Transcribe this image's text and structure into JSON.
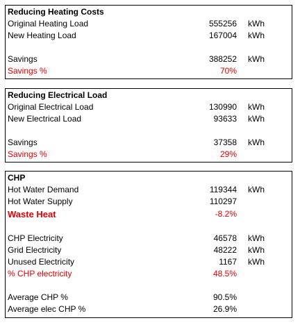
{
  "colors": {
    "accent_red": "#e00000"
  },
  "heating": {
    "title": "Reducing Heating Costs",
    "rows": [
      {
        "label": "Original Heating Load",
        "value": "555256",
        "unit": "kWh"
      },
      {
        "label": "New Heating Load",
        "value": "167004",
        "unit": "kWh"
      },
      {
        "label": "Savings",
        "value": "388252",
        "unit": "kWh"
      },
      {
        "label": "Savings %",
        "value": "70%",
        "unit": ""
      }
    ]
  },
  "electrical": {
    "title": "Reducing Electrical Load",
    "rows": [
      {
        "label": "Original Electrical Load",
        "value": "130990",
        "unit": "kWh"
      },
      {
        "label": "New Electrical Load",
        "value": "93633",
        "unit": "kWh"
      },
      {
        "label": "Savings",
        "value": "37358",
        "unit": "kWh"
      },
      {
        "label": "Savings %",
        "value": "29%",
        "unit": ""
      }
    ]
  },
  "chp": {
    "title": "CHP",
    "rows": [
      {
        "label": "Hot Water Demand",
        "value": "119344",
        "unit": "kWh"
      },
      {
        "label": "Hot Water Supply",
        "value": "110297",
        "unit": ""
      },
      {
        "label": "Waste Heat",
        "value": "-8.2%",
        "unit": ""
      },
      {
        "label": "CHP Electricity",
        "value": "46578",
        "unit": "kWh"
      },
      {
        "label": "Grid Electricity",
        "value": "48222",
        "unit": "kWh"
      },
      {
        "label": "Unused Electricity",
        "value": "1167",
        "unit": "kWh"
      },
      {
        "label": "% CHP electricity",
        "value": "48.5%",
        "unit": ""
      },
      {
        "label": "Average CHP %",
        "value": "90.5%",
        "unit": ""
      },
      {
        "label": "Average elec CHP %",
        "value": "26.9%",
        "unit": ""
      }
    ]
  }
}
